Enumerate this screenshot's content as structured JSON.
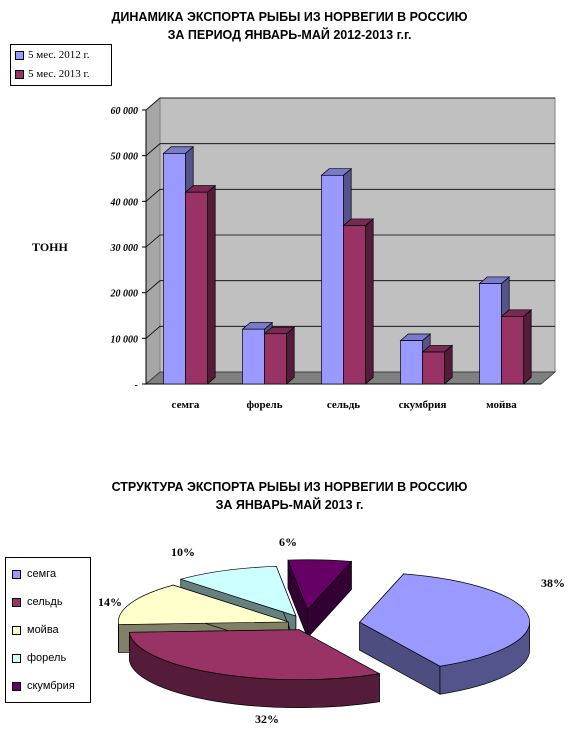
{
  "chart_data": [
    {
      "type": "bar",
      "title": [
        "ДИНАМИКА ЭКСПОРТА РЫБЫ ИЗ НОРВЕГИИ В РОССИЮ",
        "ЗА ПЕРИОД ЯНВАРЬ-МАЙ 2012-2013 г.г."
      ],
      "ylabel": "ТОНН",
      "ylim": [
        0,
        60000
      ],
      "yticks": [
        "-",
        "10 000",
        "20 000",
        "30 000",
        "40 000",
        "50 000",
        "60 000"
      ],
      "categories": [
        "семга",
        "форель",
        "сельдь",
        "скумбрия",
        "мойва"
      ],
      "series": [
        {
          "name": "5 мес. 2012 г.",
          "color": "#9999ff",
          "values": [
            50500,
            12000,
            45700,
            9500,
            22000
          ]
        },
        {
          "name": "5 мес. 2013 г.",
          "color": "#993366",
          "values": [
            42000,
            11000,
            34700,
            7000,
            14800
          ]
        }
      ],
      "legend": "top-left",
      "grid": true
    },
    {
      "type": "pie",
      "title": [
        "СТРУКТУРА ЭКСПОРТА РЫБЫ ИЗ НОРВЕГИИ В РОССИЮ",
        "ЗА ЯНВАРЬ-МАЙ 2013 г."
      ],
      "labels": [
        "семга",
        "сельдь",
        "мойва",
        "форель",
        "скумбрия"
      ],
      "values": [
        38,
        32,
        14,
        10,
        6
      ],
      "value_labels": [
        "38%",
        "32%",
        "14%",
        "10%",
        "6%"
      ],
      "colors": [
        "#9999ff",
        "#993366",
        "#ffffcc",
        "#ccffff",
        "#660066"
      ],
      "legend": "left"
    }
  ]
}
